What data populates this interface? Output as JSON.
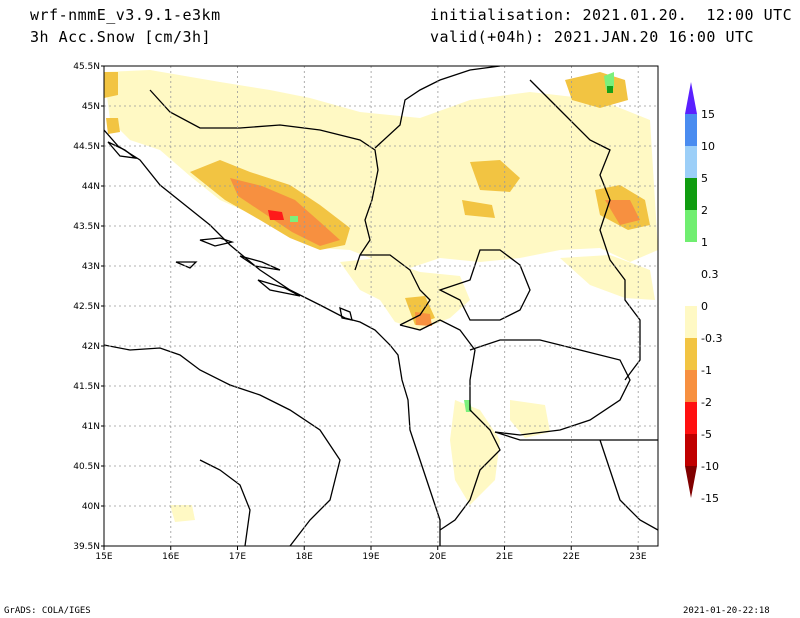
{
  "header": {
    "model": "wrf-nmmE_v3.9.1-e3km",
    "field": "3h Acc.Snow [cm/3h]",
    "init": "initialisation: 2021.01.20.  12:00 UTC",
    "valid": "valid(+04h): 2021.JAN.20 16:00 UTC"
  },
  "footer": {
    "credit": "GrADS: COLA/IGES",
    "timestamp": "2021-01-20-22:18"
  },
  "map": {
    "lon_range": [
      15,
      23.3
    ],
    "lat_range": [
      39.5,
      45.5
    ],
    "lon_ticks": [
      "15E",
      "16E",
      "17E",
      "18E",
      "19E",
      "20E",
      "21E",
      "22E",
      "23E"
    ],
    "lat_ticks": [
      "39.5N",
      "40N",
      "40.5N",
      "41N",
      "41.5N",
      "42N",
      "42.5N",
      "43N",
      "43.5N",
      "44N",
      "44.5N",
      "45N",
      "45.5N"
    ],
    "colors": {
      "light": "#fff9c4",
      "mid": "#f2c442",
      "orange": "#f79040",
      "red": "#ff1a1a",
      "green_light": "#7cf07c",
      "green_dark": "#18a018"
    }
  },
  "colorbar": {
    "labels": [
      "15",
      "10",
      "5",
      "2",
      "1",
      "0.3",
      "0",
      "-0.3",
      "-1",
      "-2",
      "-5",
      "-10",
      "-15"
    ],
    "colors": [
      "#5a20ff",
      "#4a8cf0",
      "#9ccff8",
      "#109c10",
      "#70ee70",
      "#ffffff",
      "#ffffff",
      "#fff9c4",
      "#f2c442",
      "#f79040",
      "#ff1010",
      "#c00000",
      "#800000"
    ]
  }
}
